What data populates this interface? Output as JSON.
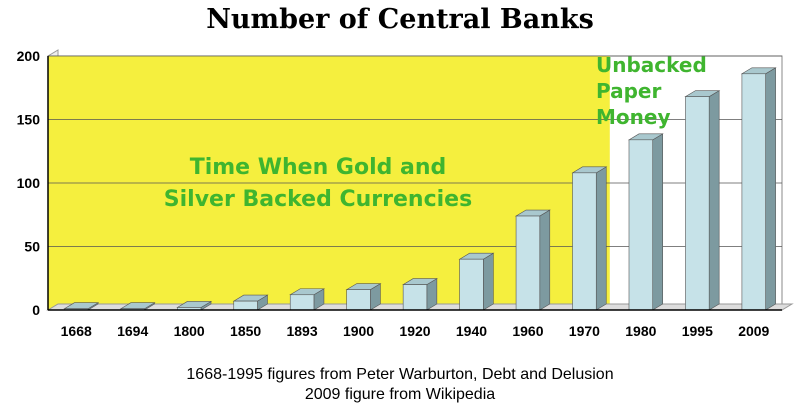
{
  "chart_data": {
    "type": "bar",
    "title": "Number of Central Banks",
    "categories": [
      "1668",
      "1694",
      "1800",
      "1850",
      "1893",
      "1900",
      "1920",
      "1940",
      "1960",
      "1970",
      "1980",
      "1995",
      "2009"
    ],
    "values": [
      1,
      1,
      2,
      7,
      12,
      16,
      20,
      40,
      74,
      108,
      134,
      168,
      186
    ],
    "ylim": [
      0,
      200
    ],
    "yticks": [
      0,
      50,
      100,
      150,
      200
    ],
    "grid": true,
    "bar_color": "#c6e2e8",
    "annotations": [
      {
        "text_lines": [
          "Time When Gold and",
          "Silver Backed Currencies"
        ],
        "color": "#3fb52f"
      },
      {
        "text_lines": [
          "Unbacked",
          "Paper",
          "Money"
        ],
        "color": "#3fb52f"
      }
    ],
    "shaded_region": {
      "from": "1668",
      "to": "1970",
      "color": "#f5ef3e"
    }
  },
  "captions": [
    "1668-1995 figures from Peter Warburton, Debt and Delusion",
    "2009 figure from Wikipedia"
  ]
}
